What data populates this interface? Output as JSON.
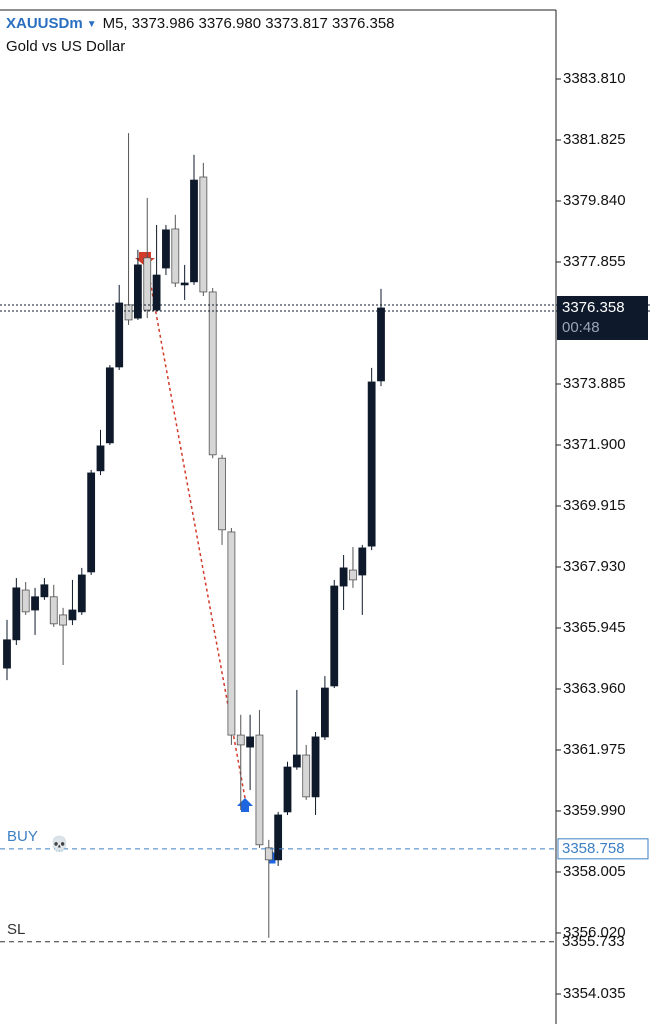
{
  "chart_data": {
    "type": "candlestick",
    "symbol": "XAUUSDm",
    "symbol_marker": "▼",
    "title": "M5, 3373.986 3376.980 3373.817 3376.358",
    "subtitle": "Gold vs US Dollar",
    "up_color": "#0e1a2b",
    "down_color": "#d6d6d6",
    "open": [
      3364.64,
      3365.56,
      3367.18,
      3366.53,
      3366.96,
      3366.96,
      3366.37,
      3366.21,
      3366.47,
      3367.77,
      3371.06,
      3371.97,
      3374.44,
      3376.46,
      3376.03,
      3377.99,
      3376.29,
      3377.66,
      3378.93,
      3377.11,
      3377.21,
      3380.62,
      3376.88,
      3371.47,
      3369.07,
      3362.46,
      3362.07,
      3362.46,
      3358.79,
      3358.4,
      3359.96,
      3361.42,
      3361.81,
      3360.45,
      3362.4,
      3364.06,
      3367.31,
      3367.83,
      3367.67,
      3368.61,
      3373.986
    ],
    "high": [
      3366.21,
      3367.57,
      3367.44,
      3367.25,
      3367.57,
      3367.35,
      3366.6,
      3367.51,
      3367.9,
      3371.09,
      3372.39,
      3374.5,
      3377.11,
      3382.05,
      3378.25,
      3379.94,
      3379.06,
      3379.06,
      3379.39,
      3377.76,
      3381.34,
      3381.08,
      3377.01,
      3371.58,
      3369.2,
      3363.12,
      3363.12,
      3363.28,
      3359.05,
      3359.96,
      3361.59,
      3363.93,
      3362.14,
      3362.56,
      3364.38,
      3367.51,
      3368.32,
      3368.58,
      3368.65,
      3374.41,
      3376.98
    ],
    "low": [
      3364.25,
      3365.39,
      3366.37,
      3365.72,
      3366.86,
      3365.98,
      3364.74,
      3366.04,
      3366.37,
      3367.67,
      3370.92,
      3371.9,
      3374.34,
      3375.81,
      3375.97,
      3376.03,
      3376.29,
      3377.43,
      3377.04,
      3376.62,
      3377.11,
      3376.75,
      3371.47,
      3368.65,
      3362.14,
      3360.02,
      3360.67,
      3358.79,
      3355.86,
      3358.2,
      3359.86,
      3361.33,
      3360.35,
      3359.86,
      3362.3,
      3363.99,
      3366.53,
      3367.25,
      3366.37,
      3368.48,
      3373.817
    ],
    "close": [
      3365.56,
      3367.25,
      3366.47,
      3366.96,
      3367.35,
      3366.08,
      3366.04,
      3366.53,
      3367.67,
      3370.99,
      3371.87,
      3374.41,
      3376.52,
      3375.97,
      3377.76,
      3376.29,
      3377.43,
      3378.9,
      3377.17,
      3377.17,
      3380.52,
      3376.88,
      3371.58,
      3369.14,
      3362.46,
      3362.14,
      3362.4,
      3358.89,
      3358.4,
      3359.86,
      3361.42,
      3361.81,
      3360.45,
      3362.4,
      3363.99,
      3367.31,
      3367.9,
      3367.51,
      3368.55,
      3373.95,
      3376.358
    ],
    "ylim": [
      3353.058,
      3386.055
    ],
    "yticks": [
      {
        "value": 3383.81,
        "label": "3383.810"
      },
      3381.825,
      {
        "value": 3379.84,
        "label": "3379.840"
      },
      3377.855,
      3373.885,
      {
        "value": 3371.9,
        "label": "3371.900"
      },
      3369.915,
      {
        "value": 3367.93,
        "label": "3367.930"
      },
      3365.945,
      {
        "value": 3363.96,
        "label": "3363.960"
      },
      3361.975,
      {
        "value": 3359.99,
        "label": "3359.990"
      },
      3358.005,
      {
        "value": 3356.02,
        "label": "3356.020"
      },
      3354.035
    ],
    "current_price": {
      "value": 3376.358,
      "timer": "00:48"
    },
    "levels": [
      {
        "label": "BUY",
        "value": 3358.758,
        "color": "#3d7fc4",
        "icon": "💀"
      },
      {
        "label": "SL",
        "value": 3355.733,
        "color": "#333333"
      }
    ]
  }
}
